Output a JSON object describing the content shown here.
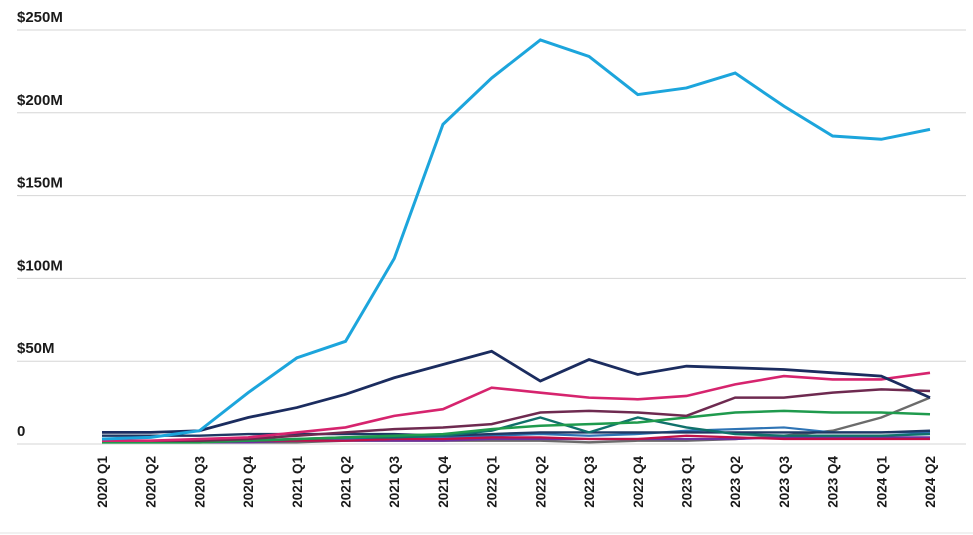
{
  "page": {
    "background_color": "#ffffff",
    "title": "",
    "legend": "none"
  },
  "chart_data": {
    "type": "line",
    "title": "",
    "xlabel": "",
    "ylabel": "",
    "unit": "$M",
    "ylim": [
      0,
      250
    ],
    "grid": "horizontal",
    "legend_position": "none",
    "y_axis": {
      "tick_labels": [
        "$250M",
        "$200M",
        "$150M",
        "$100M",
        "$50M",
        "0"
      ],
      "tick_values": [
        250,
        200,
        150,
        100,
        50,
        0
      ]
    },
    "categories": [
      "2020 Q1",
      "2020 Q2",
      "2020 Q3",
      "2020 Q4",
      "2021 Q1",
      "2021 Q2",
      "2021 Q3",
      "2021 Q4",
      "2022 Q1",
      "2022 Q2",
      "2022 Q3",
      "2022 Q4",
      "2023 Q1",
      "2023 Q2",
      "2023 Q3",
      "2023 Q4",
      "2024 Q1",
      "2024 Q2"
    ],
    "series": [
      {
        "name": "gray",
        "color": "#6b6b6b",
        "stroke_width": 2.4,
        "values": [
          1,
          1,
          1,
          1,
          1,
          2,
          2,
          2,
          2,
          2,
          1,
          2,
          2,
          3,
          5,
          8,
          16,
          28
        ]
      },
      {
        "name": "steel-blue",
        "color": "#2e74b5",
        "stroke_width": 2.2,
        "values": [
          1,
          1,
          1,
          2,
          3,
          3,
          4,
          4,
          5,
          6,
          5,
          6,
          8,
          9,
          10,
          7,
          7,
          7
        ]
      },
      {
        "name": "purple",
        "color": "#6e30a0",
        "stroke_width": 2.2,
        "values": [
          1,
          1,
          1,
          1,
          2,
          2,
          2,
          2,
          3,
          3,
          3,
          3,
          3,
          3,
          4,
          4,
          4,
          4
        ]
      },
      {
        "name": "crimson",
        "color": "#c01048",
        "stroke_width": 2.2,
        "values": [
          1,
          1,
          1,
          2,
          2,
          2,
          3,
          3,
          4,
          4,
          3,
          3,
          5,
          4,
          3,
          3,
          3,
          3
        ]
      },
      {
        "name": "dark-navy-2",
        "color": "#1f3864",
        "stroke_width": 2.4,
        "values": [
          5,
          5,
          5,
          6,
          6,
          6,
          6,
          5,
          6,
          7,
          7,
          7,
          7,
          7,
          7,
          7,
          7,
          8
        ]
      },
      {
        "name": "teal",
        "color": "#10716b",
        "stroke_width": 2.4,
        "values": [
          1,
          1,
          1,
          2,
          3,
          4,
          4,
          5,
          8,
          16,
          7,
          16,
          10,
          6,
          5,
          5,
          5,
          6
        ]
      },
      {
        "name": "green",
        "color": "#1f9a4d",
        "stroke_width": 2.5,
        "values": [
          1,
          1,
          1,
          2,
          3,
          4,
          5,
          6,
          9,
          11,
          12,
          13,
          16,
          19,
          20,
          19,
          19,
          18
        ]
      },
      {
        "name": "plum",
        "color": "#6e2a50",
        "stroke_width": 2.5,
        "values": [
          2,
          2,
          2,
          3,
          5,
          7,
          9,
          10,
          12,
          19,
          20,
          19,
          17,
          28,
          28,
          31,
          33,
          32
        ]
      },
      {
        "name": "pink",
        "color": "#d6246e",
        "stroke_width": 2.6,
        "values": [
          2,
          2,
          3,
          4,
          7,
          10,
          17,
          21,
          34,
          31,
          28,
          27,
          29,
          36,
          41,
          39,
          39,
          43
        ]
      },
      {
        "name": "navy",
        "color": "#1b2c5f",
        "stroke_width": 2.8,
        "values": [
          7,
          7,
          8,
          16,
          22,
          30,
          40,
          48,
          56,
          38,
          51,
          42,
          47,
          46,
          45,
          43,
          41,
          28
        ]
      },
      {
        "name": "light-blue",
        "color": "#1ca5dc",
        "stroke_width": 3,
        "values": [
          3,
          4,
          8,
          31,
          52,
          62,
          112,
          193,
          221,
          244,
          234,
          211,
          215,
          224,
          204,
          186,
          184,
          190
        ]
      }
    ]
  }
}
